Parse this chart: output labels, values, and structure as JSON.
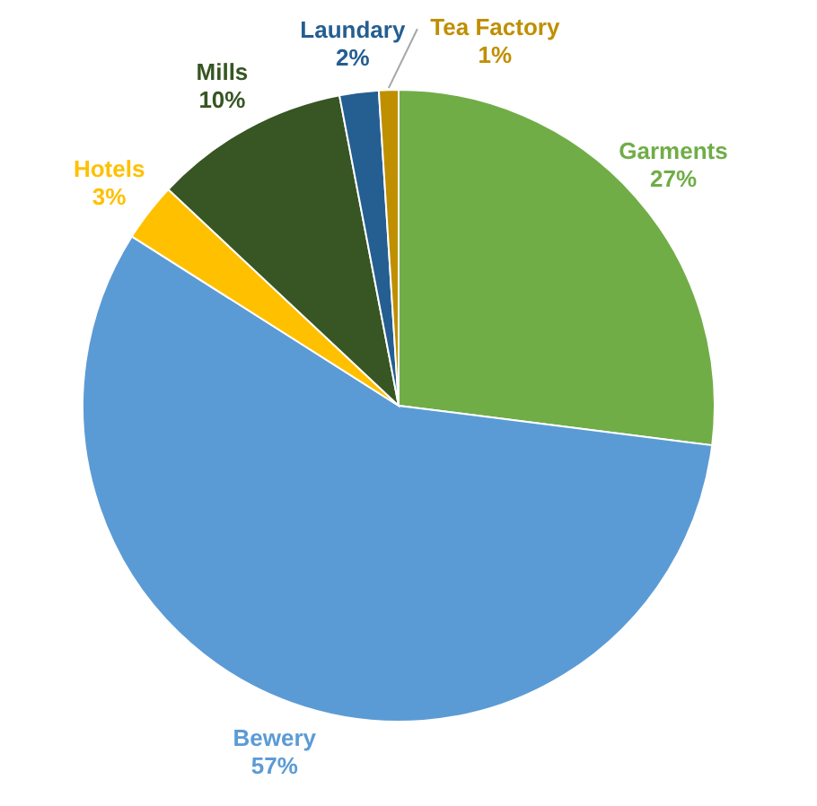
{
  "chart_data": {
    "type": "pie",
    "categories": [
      "Garments",
      "Bewery",
      "Hotels",
      "Mills",
      "Laundary",
      "Tea Factory"
    ],
    "values": [
      27,
      57,
      3,
      10,
      2,
      1
    ],
    "colors": [
      "#70ad47",
      "#5b9bd5",
      "#ffc000",
      "#375623",
      "#255e91",
      "#bf8f00"
    ],
    "value_labels": [
      "27%",
      "57%",
      "3%",
      "10%",
      "2%",
      "1%"
    ]
  }
}
